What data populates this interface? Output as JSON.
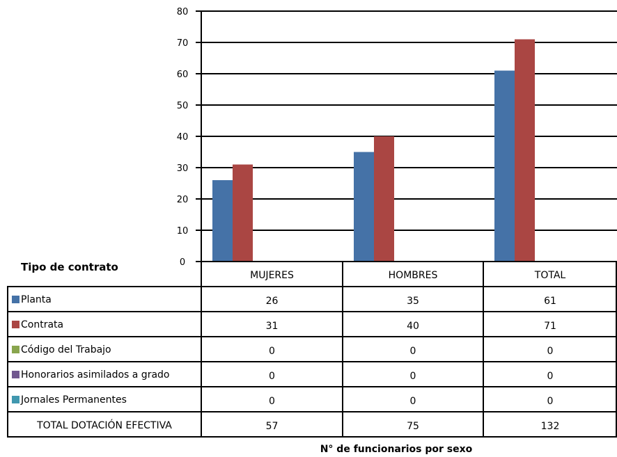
{
  "chart_data": {
    "type": "bar",
    "categories": [
      "MUJERES",
      "HOMBRES",
      "TOTAL"
    ],
    "series": [
      {
        "name": "Planta",
        "values": [
          26,
          35,
          61
        ],
        "color": "#4572a7"
      },
      {
        "name": "Contrata",
        "values": [
          31,
          40,
          71
        ],
        "color": "#aa4643"
      },
      {
        "name": "Código del Trabajo",
        "values": [
          0,
          0,
          0
        ],
        "color": "#89a54e"
      },
      {
        "name": "Honorarios asimilados a grado",
        "values": [
          0,
          0,
          0
        ],
        "color": "#71588f"
      },
      {
        "name": "Jornales Permanentes",
        "values": [
          0,
          0,
          0
        ],
        "color": "#4198af"
      }
    ],
    "totals": {
      "label": "TOTAL DOTACIÓN EFECTIVA",
      "values": [
        57,
        75,
        132
      ]
    },
    "yticks": [
      0,
      10,
      20,
      30,
      40,
      50,
      60,
      70,
      80
    ],
    "ylim": [
      0,
      80
    ],
    "grid": true,
    "legend_title": "Tipo de contrato",
    "xlabel": "N° de funcionarios por sexo",
    "ylabel": "",
    "title": ""
  }
}
